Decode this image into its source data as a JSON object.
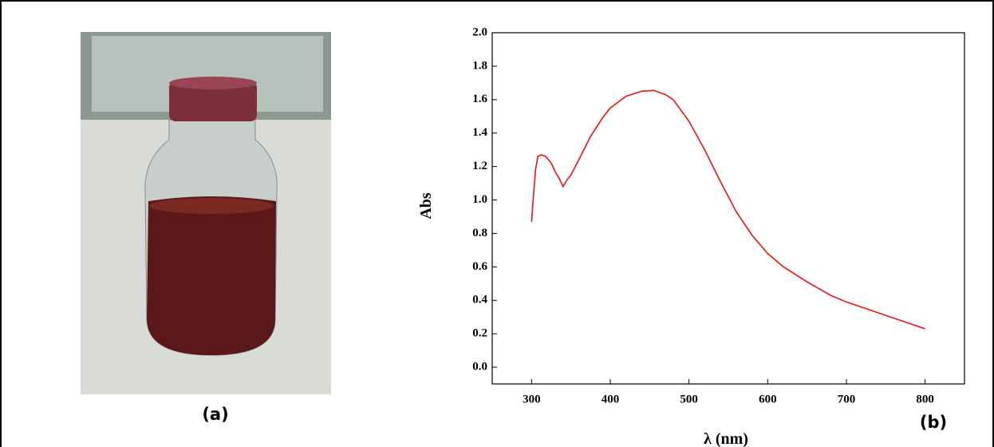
{
  "panel_labels": [
    "(a)",
    "(b)"
  ],
  "chart_data": {
    "type": "line",
    "xlabel": "λ (nm)",
    "ylabel": "Abs",
    "x": [
      300,
      302,
      305,
      308,
      312,
      318,
      325,
      330,
      335,
      340,
      345,
      350,
      360,
      375,
      390,
      400,
      420,
      440,
      455,
      470,
      480,
      500,
      520,
      540,
      560,
      580,
      600,
      620,
      650,
      680,
      700,
      750,
      800
    ],
    "series": [
      {
        "color": "#ee1111",
        "values": [
          0.87,
          1.0,
          1.18,
          1.26,
          1.27,
          1.26,
          1.22,
          1.17,
          1.13,
          1.08,
          1.12,
          1.15,
          1.24,
          1.38,
          1.49,
          1.55,
          1.62,
          1.65,
          1.655,
          1.63,
          1.6,
          1.47,
          1.3,
          1.11,
          0.93,
          0.79,
          0.68,
          0.6,
          0.51,
          0.43,
          0.39,
          0.31,
          0.23
        ]
      }
    ],
    "xlim": [
      250,
      850
    ],
    "ylim": [
      -0.1,
      2.0
    ],
    "xticks": [
      300,
      400,
      500,
      600,
      700,
      800
    ],
    "yticks": [
      {
        "value": 0,
        "label": "0.0"
      },
      0.2,
      0.4,
      0.6,
      0.8,
      {
        "value": 1,
        "label": "1.0"
      },
      1.2,
      1.4,
      1.6,
      1.8,
      {
        "value": 2,
        "label": "2.0"
      }
    ]
  }
}
